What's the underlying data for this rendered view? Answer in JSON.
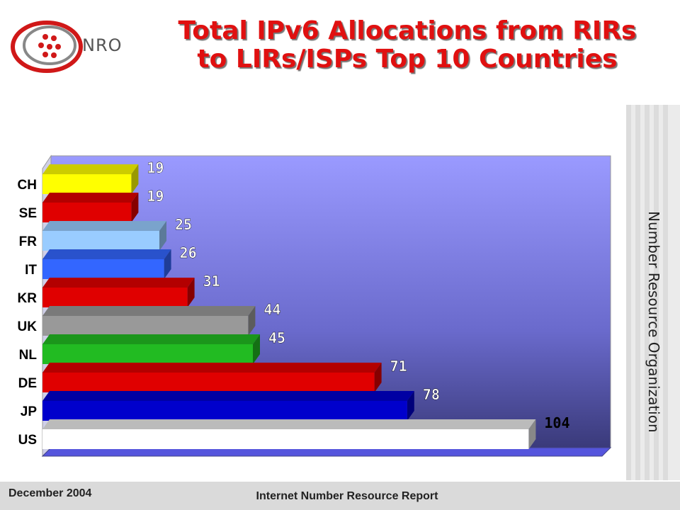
{
  "header": {
    "logo_text": "NRO",
    "title_line1": "Total IPv6 Allocations from RIRs",
    "title_line2": "to LIRs/ISPs Top 10 Countries"
  },
  "side_caption": "Number Resource Organization",
  "footer": {
    "date": "December 2004",
    "report": "Internet Number Resource Report"
  },
  "chart_data": {
    "type": "bar",
    "orientation": "horizontal",
    "title": "Total IPv6 Allocations from RIRs to LIRs/ISPs Top 10 Countries",
    "categories": [
      "CH",
      "SE",
      "FR",
      "IT",
      "KR",
      "UK",
      "NL",
      "DE",
      "JP",
      "US"
    ],
    "values": [
      19,
      19,
      25,
      26,
      31,
      44,
      45,
      71,
      78,
      104
    ],
    "colors": [
      "#ffff00",
      "#e00000",
      "#99ccff",
      "#3366ff",
      "#e00000",
      "#999999",
      "#22bb22",
      "#e00000",
      "#0000cc",
      "#ffffff"
    ],
    "xlabel": "",
    "ylabel": "",
    "grid": false,
    "legend": "none"
  }
}
